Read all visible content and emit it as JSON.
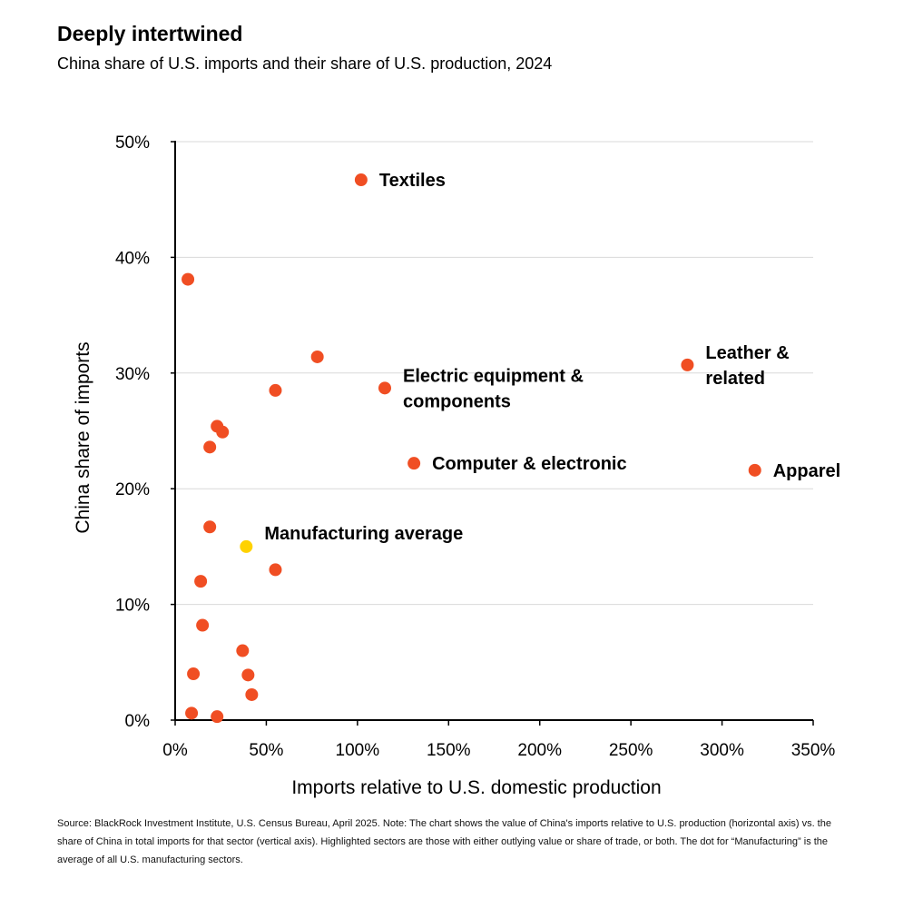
{
  "header": {
    "title": "Deeply intertwined",
    "subtitle": "China share of U.S. imports and their share of U.S. production, 2024"
  },
  "footnote": "Source: BlackRock Investment Institute, U.S. Census Bureau, April 2025. Note: The chart shows the value of China's imports relative to U.S. production (horizontal axis) vs. the share of China in total imports for that sector (vertical axis). Highlighted sectors are those with either outlying value or share of trade, or both. The dot for “Manufacturing” is the average of all U.S. manufacturing sectors.",
  "colors": {
    "sector": "#F04E23",
    "average": "#FFD200",
    "grid": "#D9D9D9",
    "axis": "#000000"
  },
  "chart_data": {
    "type": "scatter",
    "title": "Deeply intertwined",
    "subtitle": "China share of U.S. imports and their share of U.S. production, 2024",
    "xlabel": "Imports relative to U.S. domestic production",
    "ylabel": "China share of imports",
    "xlim": [
      0,
      350
    ],
    "ylim": [
      0,
      50
    ],
    "x_ticks": [
      0,
      50,
      100,
      150,
      200,
      250,
      300,
      350
    ],
    "y_ticks": [
      0,
      10,
      20,
      30,
      40,
      50
    ],
    "x_tick_labels": [
      "0%",
      "50%",
      "100%",
      "150%",
      "200%",
      "250%",
      "300%",
      "350%"
    ],
    "y_tick_labels": [
      "0%",
      "10%",
      "20%",
      "30%",
      "40%",
      "50%"
    ],
    "grid": "horizontal",
    "points": [
      {
        "x": 102,
        "y": 46.7,
        "label": "Textiles",
        "color": "sector"
      },
      {
        "x": 115,
        "y": 28.7,
        "label": "Electric equipment &\ncomponents",
        "color": "sector"
      },
      {
        "x": 131,
        "y": 22.2,
        "label": "Computer & electronic",
        "color": "sector"
      },
      {
        "x": 281,
        "y": 30.7,
        "label": "Leather &\nrelated",
        "color": "sector"
      },
      {
        "x": 318,
        "y": 21.6,
        "label": "Apparel",
        "color": "sector"
      },
      {
        "x": 39,
        "y": 15.0,
        "label": "Manufacturing average",
        "color": "average"
      },
      {
        "x": 7,
        "y": 38.1,
        "color": "sector"
      },
      {
        "x": 78,
        "y": 31.4,
        "color": "sector"
      },
      {
        "x": 55,
        "y": 28.5,
        "color": "sector"
      },
      {
        "x": 23,
        "y": 25.4,
        "color": "sector"
      },
      {
        "x": 26,
        "y": 24.9,
        "color": "sector"
      },
      {
        "x": 19,
        "y": 23.6,
        "color": "sector"
      },
      {
        "x": 19,
        "y": 16.7,
        "color": "sector"
      },
      {
        "x": 55,
        "y": 13.0,
        "color": "sector"
      },
      {
        "x": 14,
        "y": 12.0,
        "color": "sector"
      },
      {
        "x": 15,
        "y": 8.2,
        "color": "sector"
      },
      {
        "x": 37,
        "y": 6.0,
        "color": "sector"
      },
      {
        "x": 10,
        "y": 4.0,
        "color": "sector"
      },
      {
        "x": 40,
        "y": 3.9,
        "color": "sector"
      },
      {
        "x": 42,
        "y": 2.2,
        "color": "sector"
      },
      {
        "x": 9,
        "y": 0.6,
        "color": "sector"
      },
      {
        "x": 23,
        "y": 0.3,
        "color": "sector"
      }
    ]
  }
}
